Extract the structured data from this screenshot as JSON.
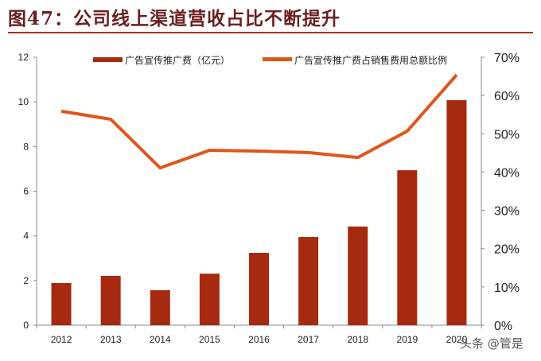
{
  "title": "图47：公司线上渠道营收占比不断提升",
  "watermark": "头条 @管是",
  "chart_data": {
    "type": "bar+line",
    "categories": [
      "2012",
      "2013",
      "2014",
      "2015",
      "2016",
      "2017",
      "2018",
      "2019",
      "2020"
    ],
    "series": [
      {
        "name": "广告宣传推广费（亿元）",
        "type": "bar",
        "axis": "left",
        "color": "#a52a10",
        "values": [
          1.89,
          2.21,
          1.57,
          2.31,
          3.24,
          3.95,
          4.42,
          6.94,
          10.08
        ]
      },
      {
        "name": "广告宣传推广费占销售费用总额比例",
        "type": "line",
        "axis": "right",
        "color": "#e0561a",
        "values": [
          55.9,
          53.8,
          41.1,
          45.7,
          45.5,
          45.1,
          43.8,
          50.7,
          65.4
        ]
      }
    ],
    "left_axis": {
      "ylim": [
        0,
        12
      ],
      "ticks": [
        "0",
        "2",
        "4",
        "6",
        "8",
        "10",
        "12"
      ]
    },
    "right_axis": {
      "ylim": [
        0,
        70
      ],
      "ticks": [
        "0%",
        "10%",
        "20%",
        "30%",
        "40%",
        "50%",
        "60%",
        "70%"
      ]
    },
    "legend": "top",
    "grid": false
  }
}
